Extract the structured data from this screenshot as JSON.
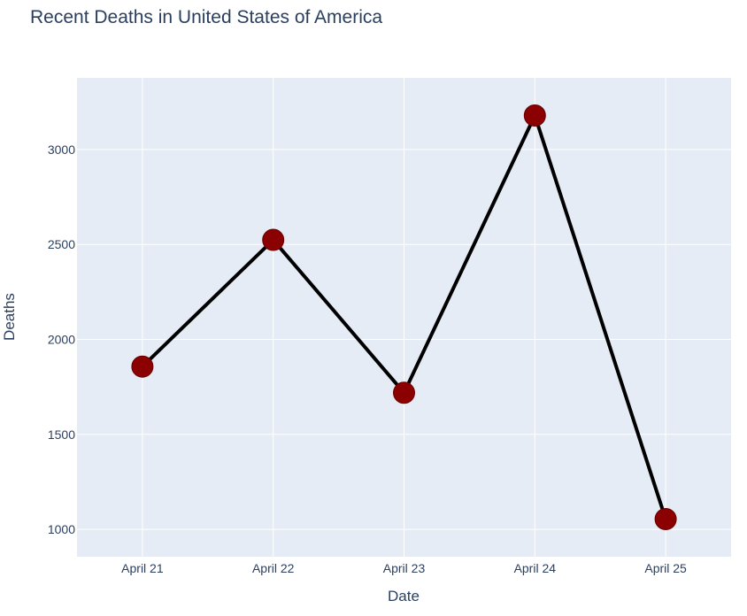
{
  "chart_data": {
    "type": "line",
    "title": "Recent Deaths in United States of America",
    "xlabel": "Date",
    "ylabel": "Deaths",
    "categories": [
      "April 21",
      "April 22",
      "April 23",
      "April 24",
      "April 25"
    ],
    "series": [
      {
        "values": [
          1857,
          2524,
          1719,
          3179,
          1054
        ],
        "line_color": "#000000",
        "marker_color": "#8b0000"
      }
    ],
    "y_ticks": [
      1000,
      1500,
      2000,
      2500,
      3000
    ],
    "ylim": [
      856,
      3377
    ],
    "grid": true,
    "legend": "none",
    "colors": {
      "plot_background": "#e5ecf6",
      "gridline": "#ffffff",
      "text": "#2a3f5f"
    }
  }
}
